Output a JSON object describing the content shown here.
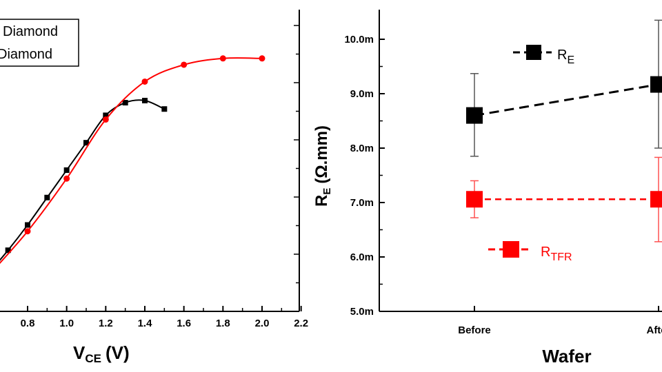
{
  "chart_data": [
    {
      "type": "line",
      "xlabel_main": "V",
      "xlabel_sub": "CE",
      "xlabel_unit": "(V)",
      "xlim": [
        0.6,
        2.2
      ],
      "xticks": [
        "0.8",
        "1.0",
        "1.2",
        "1.4",
        "1.6",
        "1.8",
        "2.0",
        "2.2"
      ],
      "legend": [
        "Diamond",
        "Diamond"
      ],
      "series": [
        {
          "color": "#000000",
          "marker": "square",
          "x": [
            0.7,
            0.8,
            0.9,
            1.0,
            1.1,
            1.2,
            1.3,
            1.4,
            1.5
          ],
          "y": [
            0.29,
            0.41,
            0.54,
            0.67,
            0.8,
            0.93,
            0.99,
            1.0,
            0.96
          ]
        },
        {
          "color": "#ff0000",
          "marker": "circle",
          "x": [
            0.8,
            1.0,
            1.2,
            1.4,
            1.6,
            1.8,
            2.0
          ],
          "y": [
            0.38,
            0.63,
            0.91,
            1.09,
            1.17,
            1.2,
            1.2
          ]
        }
      ]
    },
    {
      "type": "scatter",
      "xlabel": "Wafer",
      "ylabel_main": "R",
      "ylabel_sub": "E",
      "ylabel_unit": "(Ω.mm)",
      "categories": [
        "Before",
        "After"
      ],
      "ylim": [
        5.0,
        10.0
      ],
      "yticks": [
        "5.0m",
        "6.0m",
        "7.0m",
        "8.0m",
        "9.0m",
        "10.0m"
      ],
      "series": [
        {
          "name_main": "R",
          "name_sub": "E",
          "color": "#000000",
          "values": [
            8.6,
            9.17
          ],
          "err_low": [
            7.85,
            8.0
          ],
          "err_high": [
            9.37,
            10.35
          ]
        },
        {
          "name_main": "R",
          "name_sub": "TFR",
          "color": "#ff0000",
          "values": [
            7.06,
            7.06
          ],
          "err_low": [
            6.72,
            6.28
          ],
          "err_high": [
            7.4,
            7.83
          ]
        }
      ]
    }
  ]
}
